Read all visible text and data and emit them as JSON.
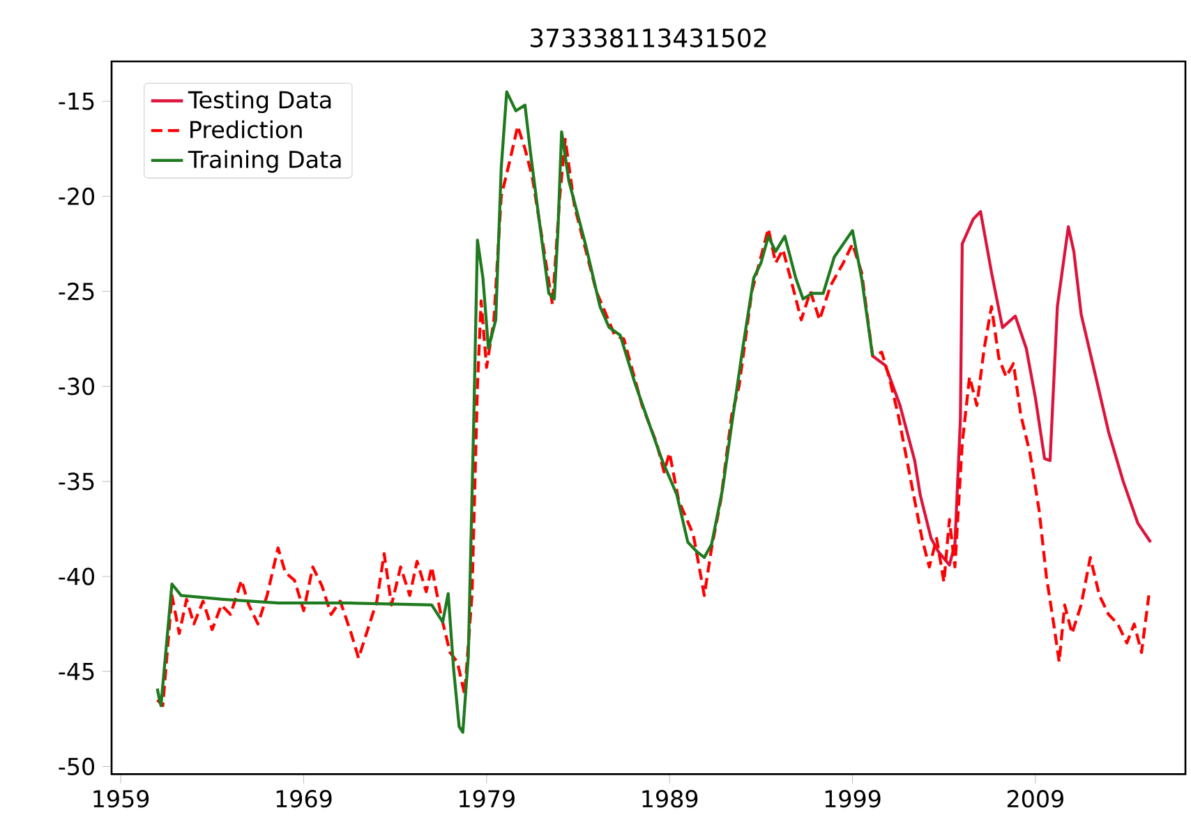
{
  "chart_data": {
    "type": "line",
    "title": "373338113431502",
    "xlim": [
      1958.5,
      2017.2
    ],
    "ylim": [
      -50.4,
      -12.9
    ],
    "xticks": [
      1959,
      1969,
      1979,
      1989,
      1999,
      2009
    ],
    "yticks": [
      -50,
      -45,
      -40,
      -35,
      -30,
      -25,
      -20,
      -15
    ],
    "legend": "top left",
    "series": [
      {
        "name": "Testing Data",
        "color": "#dc143c",
        "line_style": "solid",
        "x": [
          2000.1,
          2000.8,
          2001.6,
          2002.4,
          2002.7,
          2003.3,
          2003.7,
          2004.3,
          2004.6,
          2004.9,
          2005.0,
          2005.6,
          2006.0,
          2006.6,
          2007.2,
          2007.9,
          2008.5,
          2009.0,
          2009.5,
          2009.8,
          2010.2,
          2010.8,
          2011.1,
          2011.5,
          2012.3,
          2013.0,
          2013.8,
          2014.6,
          2015.3
        ],
        "values": [
          -28.4,
          -28.9,
          -31,
          -33.9,
          -35.7,
          -38,
          -38.7,
          -39.4,
          -38.3,
          -31.7,
          -22.5,
          -21.2,
          -20.8,
          -24,
          -26.9,
          -26.3,
          -28,
          -30.6,
          -33.8,
          -33.9,
          -25.8,
          -21.6,
          -22.9,
          -26.2,
          -29.5,
          -32.4,
          -35,
          -37.2,
          -38.2
        ]
      },
      {
        "name": "Prediction",
        "color": "#ff0000",
        "line_style": "dashed",
        "x": [
          1961.0,
          1961.3,
          1961.8,
          1962.2,
          1962.6,
          1963.0,
          1963.5,
          1964.0,
          1964.5,
          1965.0,
          1965.6,
          1966.0,
          1966.5,
          1967.0,
          1967.6,
          1968.0,
          1968.5,
          1969.0,
          1969.5,
          1970.0,
          1970.5,
          1971.0,
          1971.6,
          1972.0,
          1972.5,
          1973.0,
          1973.4,
          1973.8,
          1974.3,
          1974.8,
          1975.2,
          1975.7,
          1976.0,
          1976.5,
          1977.0,
          1977.4,
          1977.8,
          1978.2,
          1978.5,
          1978.7,
          1979.0,
          1979.4,
          1979.8,
          1980.3,
          1980.7,
          1981.1,
          1981.5,
          1982.0,
          1982.6,
          1983.0,
          1983.3,
          1983.8,
          1985.0,
          1986.0,
          1986.5,
          1987.5,
          1988.3,
          1988.7,
          1989.0,
          1989.5,
          1990.3,
          1990.9,
          1991.3,
          1991.8,
          1992.4,
          1992.8,
          1993.5,
          1994.4,
          1994.8,
          1995.2,
          1995.8,
          1996.2,
          1996.7,
          1997.2,
          1997.8,
          1998.5,
          1999.0,
          1999.5,
          2000.1,
          2000.6,
          2001.0,
          2001.5,
          2002.2,
          2002.8,
          2003.2,
          2003.6,
          2004.0,
          2004.3,
          2004.6,
          2005.0,
          2005.4,
          2005.8,
          2006.2,
          2006.6,
          2007.0,
          2007.4,
          2007.8,
          2008.2,
          2008.7,
          2009.2,
          2009.6,
          2010.0,
          2010.3,
          2010.6,
          2011.0,
          2011.5,
          2012.0,
          2012.5,
          2013.0,
          2013.5,
          2014.0,
          2014.4,
          2014.8,
          2015.2
        ],
        "values": [
          -46.5,
          -46.8,
          -41,
          -43,
          -41.2,
          -42.5,
          -41.3,
          -42.8,
          -41.5,
          -42,
          -40.2,
          -41.5,
          -42.5,
          -41,
          -38.5,
          -39.8,
          -40.2,
          -41.8,
          -39.5,
          -40.5,
          -42,
          -41.3,
          -43,
          -44.3,
          -42.8,
          -41.3,
          -38.8,
          -41.5,
          -39.5,
          -41,
          -39.2,
          -40.8,
          -39.5,
          -42,
          -44,
          -44.5,
          -46.2,
          -41,
          -30,
          -25.5,
          -29,
          -26.5,
          -20,
          -18,
          -16.3,
          -17.5,
          -19,
          -22,
          -25.7,
          -20,
          -17,
          -20.5,
          -25,
          -27.3,
          -27.5,
          -31,
          -33,
          -34.5,
          -33.5,
          -36,
          -37.8,
          -41,
          -38.5,
          -36,
          -31.5,
          -30,
          -25,
          -21.7,
          -23.5,
          -22.8,
          -25,
          -26.5,
          -25,
          -26.5,
          -24.7,
          -23.5,
          -22.5,
          -24,
          -28.4,
          -28.2,
          -29.5,
          -31.5,
          -35,
          -38,
          -39.5,
          -38,
          -40.3,
          -37,
          -39.5,
          -33,
          -29.5,
          -31,
          -28,
          -25.8,
          -28.5,
          -29.5,
          -28.8,
          -31.5,
          -33.5,
          -36.5,
          -40,
          -42.5,
          -44.5,
          -41.5,
          -43,
          -41.5,
          -39,
          -41,
          -42,
          -42.5,
          -43.5,
          -42.5,
          -44,
          -41
        ]
      },
      {
        "name": "Training Data",
        "color": "#1f7a1f",
        "line_style": "solid",
        "x": [
          1961.0,
          1961.1,
          1961.2,
          1961.8,
          1962.3,
          1964.6,
          1967.6,
          1971.4,
          1976.0,
          1976.6,
          1976.9,
          1977.2,
          1977.5,
          1977.7,
          1978.0,
          1978.3,
          1978.5,
          1978.8,
          1979.1,
          1979.5,
          1979.8,
          1980.1,
          1980.6,
          1981.1,
          1981.4,
          1981.8,
          1982.4,
          1982.7,
          1982.9,
          1983.1,
          1983.5,
          1984.4,
          1985.2,
          1985.7,
          1986.3,
          1987.1,
          1987.9,
          1988.6,
          1989.4,
          1990.0,
          1990.5,
          1990.9,
          1991.3,
          1991.9,
          1992.4,
          1993.0,
          1993.6,
          1994.0,
          1994.4,
          1994.8,
          1995.3,
          1995.9,
          1996.3,
          1996.8,
          1997.4,
          1998.0,
          1999.0,
          1999.5,
          2000.1
        ],
        "values": [
          -45.9,
          -46.4,
          -46.8,
          -40.4,
          -41,
          -41.2,
          -41.4,
          -41.4,
          -41.5,
          -42.4,
          -40.9,
          -44.9,
          -47.9,
          -48.2,
          -44.2,
          -31.7,
          -22.3,
          -24.3,
          -28,
          -26.5,
          -18.5,
          -14.5,
          -15.5,
          -15.2,
          -17.7,
          -20.7,
          -25.1,
          -25.4,
          -21.8,
          -16.6,
          -19.2,
          -22.5,
          -25.8,
          -26.9,
          -27.3,
          -29.8,
          -32,
          -33.9,
          -35.7,
          -38.2,
          -38.7,
          -39,
          -38.3,
          -35.4,
          -32,
          -28,
          -24.3,
          -23.5,
          -22.1,
          -22.9,
          -22.1,
          -24.3,
          -25.4,
          -25.1,
          -25.1,
          -23.2,
          -21.8,
          -24.3,
          -28.4
        ]
      }
    ]
  }
}
